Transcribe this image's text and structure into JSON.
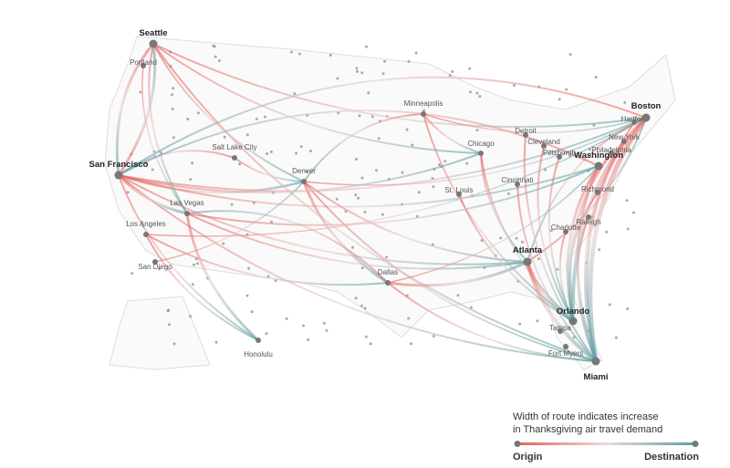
{
  "map": {
    "cities": [
      "Seattle",
      "Portland",
      "San Francisco",
      "Salt Lake City",
      "Denver",
      "Las Vegas",
      "Los Angeles",
      "San Diego",
      "Honolulu",
      "Minneapolis",
      "Chicago",
      "Detroit",
      "Cleveland",
      "Pittsburgh",
      "St. Louis",
      "Cincinnati",
      "Dallas",
      "Atlanta",
      "Charlotte",
      "Raleigh",
      "Richmond",
      "Washington",
      "Philadelphia",
      "New York",
      "Hartford",
      "Boston",
      "Orlando",
      "Tampa",
      "Fort Myers",
      "Miami"
    ],
    "legend": {
      "lines": [
        "Width of route indicates increase",
        "in Thanksgiving air travel demand"
      ],
      "origin": "Origin",
      "destination": "Destination"
    }
  }
}
